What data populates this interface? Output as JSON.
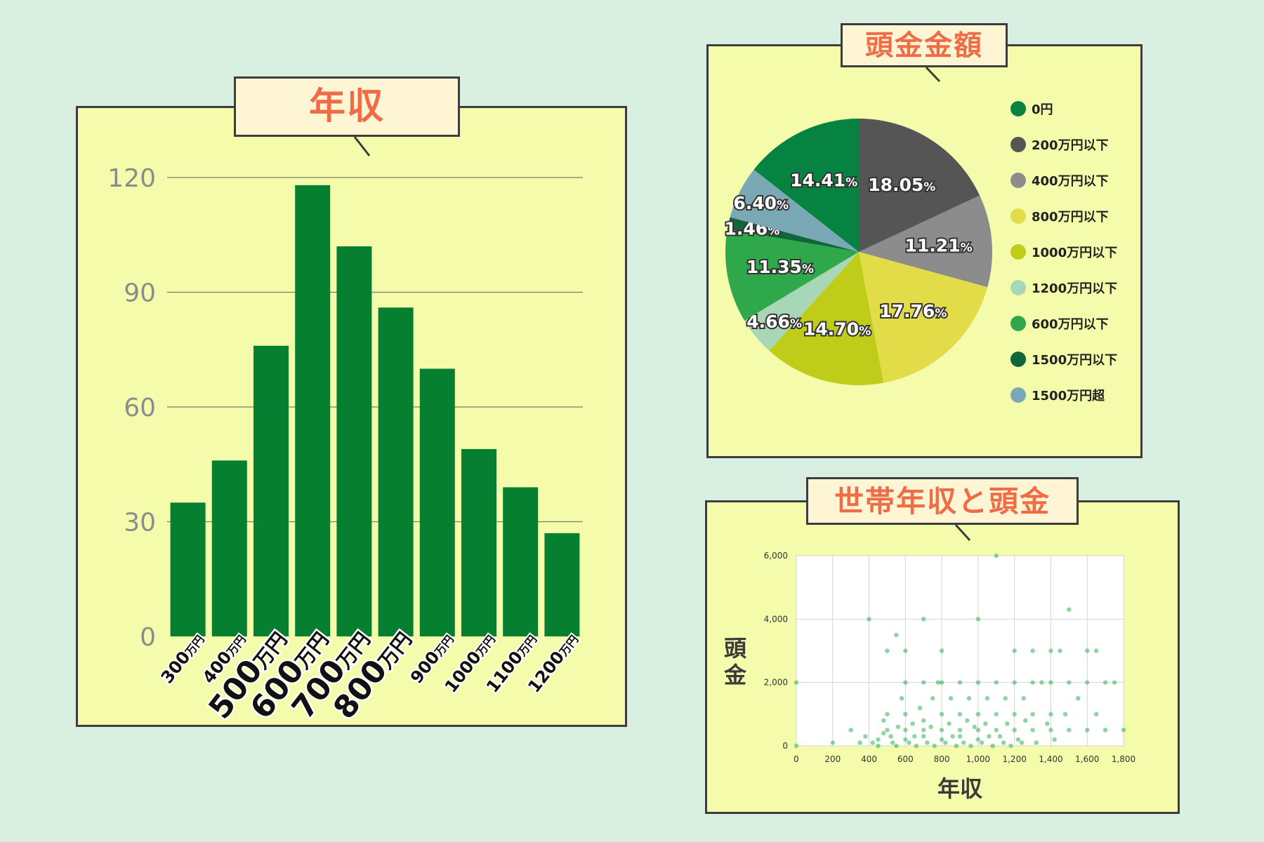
{
  "titles": {
    "income": "年収",
    "down_payment": "頭金金額",
    "scatter": "世帯年収と頭金"
  },
  "chart_data": [
    {
      "type": "bar",
      "title": "年収",
      "categories": [
        "300万円",
        "400万円",
        "500万円",
        "600万円",
        "700万円",
        "800万円",
        "900万円",
        "1000万円",
        "1100万円",
        "1200万円"
      ],
      "category_parts": [
        [
          "300",
          "万円"
        ],
        [
          "400",
          "万円"
        ],
        [
          "500",
          "万円"
        ],
        [
          "600",
          "万円"
        ],
        [
          "700",
          "万円"
        ],
        [
          "800",
          "万円"
        ],
        [
          "900",
          "万円"
        ],
        [
          "1000",
          "万円"
        ],
        [
          "1100",
          "万円"
        ],
        [
          "1200",
          "万円"
        ]
      ],
      "emphasized": [
        "500万円",
        "600万円",
        "700万円",
        "800万円"
      ],
      "values": [
        35,
        46,
        76,
        118,
        102,
        86,
        70,
        49,
        39,
        27
      ],
      "yticks": [
        0,
        30,
        60,
        90,
        120
      ],
      "ylim": [
        0,
        120
      ],
      "color": "#068030",
      "grid": true
    },
    {
      "type": "pie",
      "title": "頭金金額",
      "slices": [
        {
          "label": "200万円以下",
          "value": 18.05,
          "display": "18.05",
          "color": "#555555"
        },
        {
          "label": "400万円以下",
          "value": 11.21,
          "display": "11.21",
          "color": "#8c8c8c"
        },
        {
          "label": "800万円以下",
          "value": 17.76,
          "display": "17.76",
          "color": "#e2dc48"
        },
        {
          "label": "1000万円以下",
          "value": 14.7,
          "display": "14.70",
          "color": "#bfcd1a"
        },
        {
          "label": "1200万円以下",
          "value": 4.66,
          "display": "4.66",
          "color": "#a7d7b6"
        },
        {
          "label": "600万円以下",
          "value": 11.35,
          "display": "11.35",
          "color": "#2ea84b"
        },
        {
          "label": "1500万円以下",
          "value": 1.46,
          "display": "1.46",
          "color": "#11653a"
        },
        {
          "label": "1500万円超",
          "value": 6.4,
          "display": "6.40",
          "color": "#7aa9b5"
        },
        {
          "label": "0円",
          "value": 14.41,
          "display": "14.41",
          "color": "#068340"
        }
      ],
      "percent_sign": "%",
      "legend": [
        {
          "label": "0円",
          "color": "#068340"
        },
        {
          "label": "200万円以下",
          "color": "#555555"
        },
        {
          "label": "400万円以下",
          "color": "#8c8c8c"
        },
        {
          "label": "800万円以下",
          "color": "#e2dc48"
        },
        {
          "label": "1000万円以下",
          "color": "#bfcd1a"
        },
        {
          "label": "1200万円以下",
          "color": "#a7d7b6"
        },
        {
          "label": "600万円以下",
          "color": "#2ea84b"
        },
        {
          "label": "1500万円以下",
          "color": "#11653a"
        },
        {
          "label": "1500万円超",
          "color": "#7aa9b5"
        }
      ],
      "legend_position": "right"
    },
    {
      "type": "scatter",
      "title": "世帯年収と頭金",
      "xlabel": "年収",
      "ylabel": "頭金",
      "xlim": [
        0,
        1800
      ],
      "ylim": [
        0,
        6000
      ],
      "xticks": [
        0,
        200,
        400,
        600,
        800,
        1000,
        1200,
        1400,
        1600,
        1800
      ],
      "xtick_labels": [
        "0",
        "200",
        "400",
        "600",
        "800",
        "1,000",
        "1,200",
        "1,400",
        "1,600",
        "1,800"
      ],
      "yticks": [
        0,
        2000,
        4000,
        6000
      ],
      "ytick_labels": [
        "0",
        "2,000",
        "4,000",
        "6,000"
      ],
      "grid": true,
      "color": "#2db34a",
      "points": [
        [
          0,
          0
        ],
        [
          0,
          2000
        ],
        [
          200,
          100
        ],
        [
          300,
          500
        ],
        [
          350,
          100
        ],
        [
          380,
          300
        ],
        [
          400,
          4000
        ],
        [
          420,
          100
        ],
        [
          450,
          0
        ],
        [
          450,
          200
        ],
        [
          480,
          400
        ],
        [
          480,
          800
        ],
        [
          500,
          3000
        ],
        [
          500,
          1000
        ],
        [
          500,
          500
        ],
        [
          520,
          300
        ],
        [
          530,
          100
        ],
        [
          550,
          0
        ],
        [
          550,
          3500
        ],
        [
          560,
          600
        ],
        [
          580,
          1500
        ],
        [
          600,
          3000
        ],
        [
          600,
          2000
        ],
        [
          600,
          1000
        ],
        [
          600,
          500
        ],
        [
          600,
          200
        ],
        [
          620,
          100
        ],
        [
          640,
          700
        ],
        [
          650,
          300
        ],
        [
          660,
          0
        ],
        [
          680,
          1200
        ],
        [
          700,
          4000
        ],
        [
          700,
          2000
        ],
        [
          700,
          800
        ],
        [
          700,
          500
        ],
        [
          700,
          300
        ],
        [
          720,
          100
        ],
        [
          740,
          600
        ],
        [
          750,
          1500
        ],
        [
          760,
          0
        ],
        [
          780,
          2000
        ],
        [
          800,
          3000
        ],
        [
          800,
          2000
        ],
        [
          800,
          1000
        ],
        [
          800,
          500
        ],
        [
          800,
          200
        ],
        [
          820,
          100
        ],
        [
          840,
          700
        ],
        [
          850,
          1500
        ],
        [
          860,
          300
        ],
        [
          880,
          0
        ],
        [
          900,
          2000
        ],
        [
          900,
          1000
        ],
        [
          900,
          500
        ],
        [
          900,
          300
        ],
        [
          920,
          100
        ],
        [
          940,
          800
        ],
        [
          950,
          1500
        ],
        [
          960,
          0
        ],
        [
          980,
          600
        ],
        [
          1000,
          4000
        ],
        [
          1000,
          2000
        ],
        [
          1000,
          1000
        ],
        [
          1000,
          500
        ],
        [
          1000,
          200
        ],
        [
          1020,
          100
        ],
        [
          1040,
          700
        ],
        [
          1050,
          1500
        ],
        [
          1060,
          300
        ],
        [
          1080,
          0
        ],
        [
          1100,
          6000
        ],
        [
          1100,
          2000
        ],
        [
          1100,
          1000
        ],
        [
          1100,
          500
        ],
        [
          1120,
          300
        ],
        [
          1140,
          100
        ],
        [
          1150,
          1500
        ],
        [
          1160,
          700
        ],
        [
          1180,
          0
        ],
        [
          1200,
          3000
        ],
        [
          1200,
          2000
        ],
        [
          1200,
          1000
        ],
        [
          1200,
          500
        ],
        [
          1220,
          200
        ],
        [
          1240,
          100
        ],
        [
          1250,
          1500
        ],
        [
          1260,
          800
        ],
        [
          1300,
          3000
        ],
        [
          1300,
          2000
        ],
        [
          1300,
          1000
        ],
        [
          1300,
          500
        ],
        [
          1320,
          100
        ],
        [
          1350,
          2000
        ],
        [
          1380,
          700
        ],
        [
          1400,
          3000
        ],
        [
          1400,
          2000
        ],
        [
          1400,
          1000
        ],
        [
          1400,
          500
        ],
        [
          1420,
          200
        ],
        [
          1450,
          3000
        ],
        [
          1480,
          1000
        ],
        [
          1500,
          4300
        ],
        [
          1500,
          2000
        ],
        [
          1500,
          500
        ],
        [
          1550,
          1500
        ],
        [
          1600,
          3000
        ],
        [
          1600,
          2000
        ],
        [
          1600,
          500
        ],
        [
          1650,
          3000
        ],
        [
          1650,
          1000
        ],
        [
          1700,
          2000
        ],
        [
          1700,
          500
        ],
        [
          1750,
          2000
        ],
        [
          1800,
          500
        ]
      ]
    }
  ]
}
